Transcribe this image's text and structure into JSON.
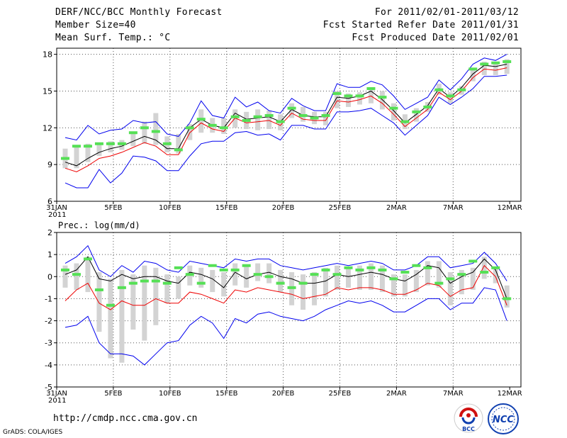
{
  "header": {
    "left": [
      "DERF/NCC/BCC Monthly Forecast",
      "Member Size=40",
      "Mean Surf. Temp.: °C"
    ],
    "right": [
      "For 2011/02/01-2011/03/12",
      "Fcst Started Refer Date 2011/01/31",
      "Fcst Produced Date 2011/02/01"
    ]
  },
  "footer": {
    "url": "http://cmdp.ncc.cma.gov.cn",
    "credit": "GrADS: COLA/IGES"
  },
  "logos": {
    "bcc": "BCC",
    "ncc": "NCC"
  },
  "colors": {
    "ensemble_box": "#d3d3d3",
    "forecast_bar": "#55e055",
    "mean_line": "#000000",
    "lower_line": "#ee0000",
    "envelope": "#0000ee",
    "grid": "#555555"
  },
  "chart_data": [
    {
      "type": "line",
      "title": "Mean Surf. Temp.: °C",
      "xlabel": "",
      "ylabel": "°C",
      "ylim": [
        6,
        18.5
      ],
      "yticks": [
        6,
        9,
        12,
        15,
        18
      ],
      "x_tick_labels": [
        "31JAN",
        "5FEB",
        "10FEB",
        "15FEB",
        "20FEB",
        "25FEB",
        "2MAR",
        "7MAR",
        "12MAR"
      ],
      "x_year_label": "2011",
      "days": 40,
      "series": [
        {
          "name": "ensemble mean",
          "values": [
            9.2,
            8.9,
            9.5,
            10,
            10.3,
            10.5,
            10.9,
            11.3,
            11.0,
            10.3,
            10.3,
            12.0,
            12.7,
            12.2,
            12.0,
            13.2,
            12.7,
            12.8,
            12.9,
            12.5,
            13.5,
            13.0,
            12.9,
            12.9,
            14.5,
            14.4,
            14.6,
            15.0,
            14.3,
            13.4,
            12.4,
            13.1,
            13.8,
            15.2,
            14.5,
            15.3,
            16.4,
            17.1,
            17.0,
            17.2
          ]
        },
        {
          "name": "lower",
          "values": [
            8.7,
            8.4,
            8.9,
            9.5,
            9.7,
            10.0,
            10.4,
            10.8,
            10.5,
            9.8,
            9.8,
            11.6,
            12.4,
            11.9,
            11.7,
            12.8,
            12.4,
            12.5,
            12.6,
            12.2,
            13.2,
            12.7,
            12.6,
            12.6,
            14.2,
            14.1,
            14.3,
            14.6,
            14.0,
            13.1,
            12.1,
            12.8,
            13.5,
            14.9,
            14.3,
            15.0,
            16.1,
            16.8,
            16.7,
            16.9
          ]
        },
        {
          "name": "envelope upper",
          "values": [
            11.2,
            11.0,
            12.2,
            11.5,
            11.8,
            11.9,
            12.6,
            12.4,
            12.5,
            11.5,
            11.3,
            12.4,
            14.2,
            13.0,
            12.8,
            14.5,
            13.7,
            14.1,
            13.4,
            13.2,
            14.4,
            13.8,
            13.4,
            13.4,
            15.6,
            15.3,
            15.3,
            15.8,
            15.5,
            14.6,
            13.5,
            14.0,
            14.5,
            15.9,
            15.1,
            16.0,
            17.2,
            17.7,
            17.5,
            18.0
          ]
        },
        {
          "name": "envelope lower",
          "values": [
            7.5,
            7.1,
            7.1,
            8.6,
            7.5,
            8.3,
            9.7,
            9.6,
            9.3,
            8.5,
            8.5,
            9.7,
            10.7,
            10.9,
            10.9,
            11.6,
            11.7,
            11.4,
            11.5,
            11.0,
            12.2,
            12.2,
            11.9,
            11.9,
            13.3,
            13.3,
            13.4,
            13.6,
            13.0,
            12.4,
            11.4,
            12.2,
            13.0,
            14.5,
            13.9,
            14.5,
            15.2,
            16.2,
            16.2,
            16.3
          ]
        },
        {
          "name": "forecast value",
          "values": [
            9.5,
            10.5,
            10.5,
            10.7,
            10.7,
            10.7,
            11.6,
            12.0,
            11.7,
            10.7,
            10.2,
            12.0,
            12.7,
            12.2,
            12.0,
            12.9,
            12.6,
            12.9,
            13.0,
            12.5,
            13.6,
            13.0,
            12.8,
            13.0,
            14.8,
            14.6,
            14.6,
            15.2,
            14.5,
            13.6,
            12.5,
            13.3,
            13.7,
            15.1,
            14.6,
            15.1,
            16.8,
            17.2,
            17.3,
            17.4
          ]
        },
        {
          "name": "ensemble box low",
          "values": [
            8.7,
            8.7,
            9.2,
            9.7,
            10.0,
            10.2,
            10.5,
            10.7,
            10.6,
            10.0,
            9.9,
            11.0,
            11.6,
            11.6,
            11.5,
            12.0,
            11.9,
            11.8,
            11.9,
            11.8,
            12.8,
            12.5,
            12.3,
            12.2,
            13.6,
            13.7,
            13.9,
            14.0,
            13.5,
            12.6,
            11.9,
            12.5,
            13.3,
            14.7,
            14.0,
            14.7,
            15.8,
            16.3,
            16.3,
            16.4
          ]
        },
        {
          "name": "ensemble box high",
          "values": [
            10.3,
            10.4,
            10.7,
            10.8,
            10.9,
            11.0,
            11.5,
            12.5,
            13.2,
            11.3,
            11.5,
            12.3,
            13.5,
            12.8,
            12.8,
            13.5,
            13.3,
            13.5,
            13.4,
            13.1,
            14.0,
            13.7,
            13.3,
            13.3,
            15.0,
            14.8,
            14.9,
            15.3,
            15.0,
            14.0,
            13.1,
            13.6,
            14.1,
            15.6,
            14.9,
            15.4,
            16.8,
            17.4,
            17.3,
            17.6
          ]
        }
      ]
    },
    {
      "type": "line",
      "title": "Prec.: log(mm/d)",
      "xlabel": "",
      "ylabel": "log(mm/d)",
      "ylim": [
        -5,
        2
      ],
      "yticks": [
        -5,
        -4,
        -3,
        -2,
        -1,
        0,
        1,
        2
      ],
      "x_tick_labels": [
        "31JAN",
        "5FEB",
        "10FEB",
        "15FEB",
        "20FEB",
        "25FEB",
        "2MAR",
        "7MAR",
        "12MAR"
      ],
      "x_year_label": "2011",
      "days": 40,
      "series": [
        {
          "name": "ensemble mean",
          "values": [
            0.1,
            0.3,
            0.9,
            -0.1,
            -0.2,
            0.1,
            -0.1,
            0.0,
            0.0,
            -0.2,
            -0.3,
            0.2,
            0.1,
            -0.1,
            -0.5,
            0.2,
            -0.1,
            0.1,
            0.2,
            0.0,
            -0.1,
            -0.3,
            -0.3,
            -0.2,
            0.1,
            0.0,
            0.1,
            0.2,
            0.1,
            -0.1,
            -0.2,
            0.1,
            0.5,
            0.4,
            -0.3,
            0.0,
            0.2,
            0.8,
            0.3,
            -1.0
          ]
        },
        {
          "name": "lower",
          "values": [
            -1.1,
            -0.6,
            -0.3,
            -1.2,
            -1.5,
            -1.1,
            -1.3,
            -1.3,
            -1.0,
            -1.2,
            -1.2,
            -0.7,
            -0.8,
            -1.0,
            -1.2,
            -0.6,
            -0.7,
            -0.5,
            -0.6,
            -0.7,
            -0.8,
            -1.0,
            -0.9,
            -0.8,
            -0.5,
            -0.6,
            -0.5,
            -0.5,
            -0.6,
            -0.8,
            -0.8,
            -0.6,
            -0.3,
            -0.4,
            -0.9,
            -0.6,
            -0.5,
            0.5,
            0.0,
            -1.3
          ]
        },
        {
          "name": "envelope upper",
          "values": [
            0.6,
            0.9,
            1.4,
            0.3,
            0.0,
            0.5,
            0.2,
            0.7,
            0.6,
            0.3,
            0.2,
            0.7,
            0.6,
            0.5,
            0.4,
            0.8,
            0.7,
            0.8,
            0.8,
            0.5,
            0.4,
            0.3,
            0.4,
            0.5,
            0.6,
            0.5,
            0.6,
            0.7,
            0.6,
            0.3,
            0.3,
            0.5,
            0.9,
            0.9,
            0.4,
            0.5,
            0.6,
            1.1,
            0.6,
            -0.2
          ]
        },
        {
          "name": "envelope lower",
          "values": [
            -2.3,
            -2.2,
            -1.8,
            -3.0,
            -3.5,
            -3.5,
            -3.6,
            -4.0,
            -3.5,
            -3.0,
            -2.9,
            -2.2,
            -1.8,
            -2.1,
            -2.8,
            -1.9,
            -2.1,
            -1.7,
            -1.6,
            -1.8,
            -1.9,
            -2.0,
            -1.8,
            -1.5,
            -1.3,
            -1.1,
            -1.2,
            -1.1,
            -1.3,
            -1.6,
            -1.6,
            -1.3,
            -1.0,
            -1.0,
            -1.5,
            -1.2,
            -1.2,
            -0.5,
            -0.6,
            -2.0
          ]
        },
        {
          "name": "forecast value",
          "values": [
            0.3,
            0.1,
            0.8,
            -0.6,
            -1.3,
            -0.5,
            -0.3,
            -0.2,
            -0.2,
            -0.3,
            0.4,
            0.1,
            -0.3,
            0.5,
            0.3,
            0.3,
            0.5,
            0.1,
            0.0,
            -0.3,
            -0.5,
            -0.3,
            0.1,
            0.3,
            0.1,
            0.4,
            0.3,
            0.4,
            0.3,
            -0.1,
            0.2,
            0.5,
            0.4,
            -0.3,
            -0.1,
            0.1,
            0.7,
            0.2,
            0.4,
            -1.0
          ]
        },
        {
          "name": "ensemble box low",
          "values": [
            -0.5,
            -0.6,
            -0.7,
            -2.5,
            -3.7,
            -3.9,
            -2.4,
            -2.9,
            -2.2,
            -1.2,
            -1.0,
            -0.4,
            -0.5,
            -0.7,
            -0.9,
            -0.4,
            -0.5,
            -0.2,
            -0.3,
            -0.7,
            -1.3,
            -1.5,
            -1.3,
            -0.9,
            -0.6,
            -0.5,
            -0.6,
            -0.6,
            -0.7,
            -0.9,
            -0.9,
            -0.7,
            -0.4,
            -0.5,
            -1.3,
            -0.8,
            -0.6,
            -0.1,
            -0.3,
            -1.4
          ]
        },
        {
          "name": "ensemble box high",
          "values": [
            0.5,
            0.6,
            0.9,
            0.2,
            -0.1,
            0.3,
            0.1,
            0.5,
            0.4,
            0.1,
            0.0,
            0.5,
            0.4,
            0.3,
            0.2,
            0.6,
            0.5,
            0.6,
            0.6,
            0.3,
            0.2,
            0.1,
            0.2,
            0.4,
            0.5,
            0.4,
            0.5,
            0.6,
            0.5,
            0.1,
            0.1,
            0.3,
            0.7,
            0.7,
            0.2,
            0.3,
            0.4,
            0.9,
            0.4,
            -0.4
          ]
        }
      ]
    }
  ]
}
